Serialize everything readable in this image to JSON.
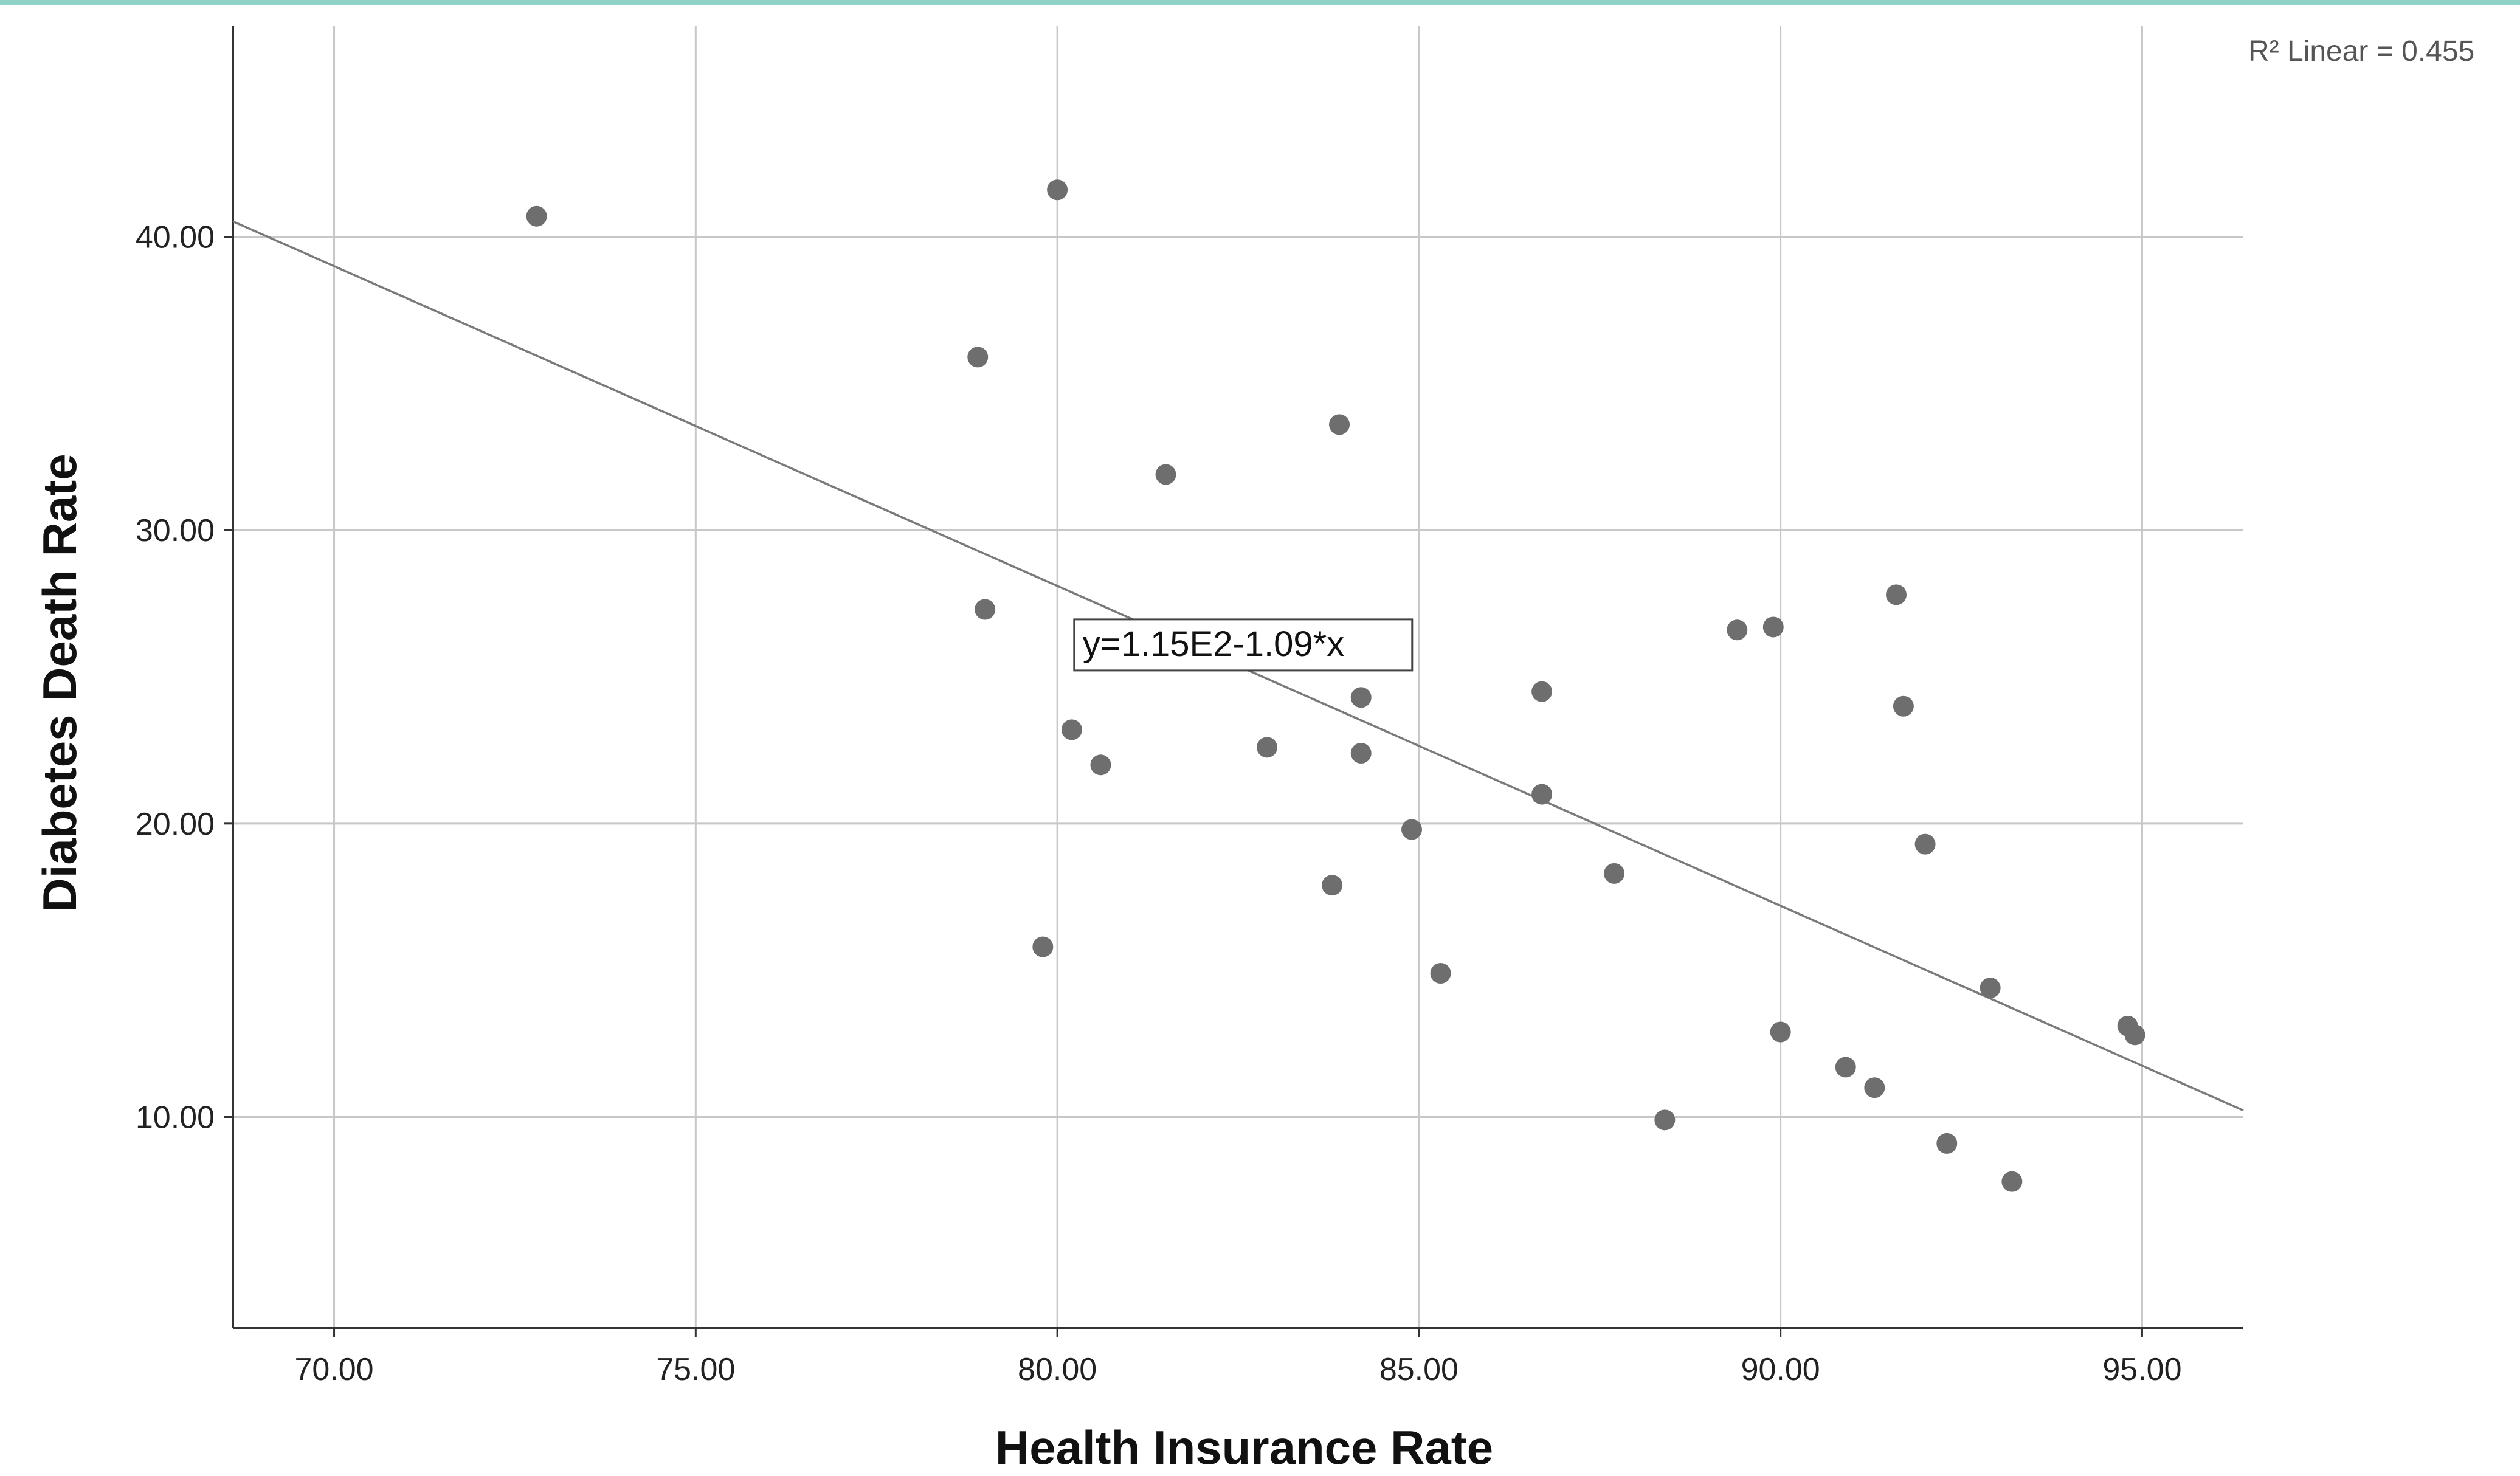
{
  "colors": {
    "accent_strip": "#8fd3c8",
    "point": "#6e6e6e",
    "gridline": "#c8c8c8",
    "axis": "#333333",
    "fit_line": "#7a7a7a"
  },
  "chart_data": {
    "type": "scatter",
    "xlabel": "Health Insurance Rate",
    "ylabel": "Diabetes Death Rate",
    "xlim": [
      68.6,
      96.4
    ],
    "ylim": [
      2.8,
      47.2
    ],
    "xticks": [
      70,
      75,
      80,
      85,
      90,
      95
    ],
    "xtick_labels": [
      "70.00",
      "75.00",
      "80.00",
      "85.00",
      "90.00",
      "95.00"
    ],
    "yticks": [
      10,
      20,
      30,
      40
    ],
    "ytick_labels": [
      "10.00",
      "20.00",
      "30.00",
      "40.00"
    ],
    "grid": true,
    "fit_line": {
      "label": "y=1.15E2-1.09*x",
      "intercept": 115.3,
      "slope": -1.09
    },
    "r2_label": "R² Linear = 0.455",
    "points": [
      {
        "x": 72.8,
        "y": 40.7
      },
      {
        "x": 80.0,
        "y": 41.6
      },
      {
        "x": 78.9,
        "y": 35.9
      },
      {
        "x": 83.9,
        "y": 33.6
      },
      {
        "x": 81.5,
        "y": 31.9
      },
      {
        "x": 79.0,
        "y": 27.3
      },
      {
        "x": 79.8,
        "y": 15.8
      },
      {
        "x": 80.2,
        "y": 23.2
      },
      {
        "x": 80.6,
        "y": 22.0
      },
      {
        "x": 82.9,
        "y": 22.6
      },
      {
        "x": 84.2,
        "y": 22.4
      },
      {
        "x": 84.2,
        "y": 24.3
      },
      {
        "x": 83.8,
        "y": 17.9
      },
      {
        "x": 84.9,
        "y": 19.8
      },
      {
        "x": 85.3,
        "y": 14.9
      },
      {
        "x": 86.7,
        "y": 24.5
      },
      {
        "x": 86.7,
        "y": 21.0
      },
      {
        "x": 87.7,
        "y": 18.3
      },
      {
        "x": 88.4,
        "y": 9.9
      },
      {
        "x": 89.4,
        "y": 26.6
      },
      {
        "x": 89.9,
        "y": 26.7
      },
      {
        "x": 90.0,
        "y": 12.9
      },
      {
        "x": 90.9,
        "y": 11.7
      },
      {
        "x": 91.3,
        "y": 11.0
      },
      {
        "x": 91.6,
        "y": 27.8
      },
      {
        "x": 91.7,
        "y": 24.0
      },
      {
        "x": 92.0,
        "y": 19.3
      },
      {
        "x": 92.3,
        "y": 9.1
      },
      {
        "x": 92.9,
        "y": 14.4
      },
      {
        "x": 93.2,
        "y": 7.8
      },
      {
        "x": 94.8,
        "y": 13.1
      },
      {
        "x": 94.9,
        "y": 12.8
      }
    ]
  }
}
